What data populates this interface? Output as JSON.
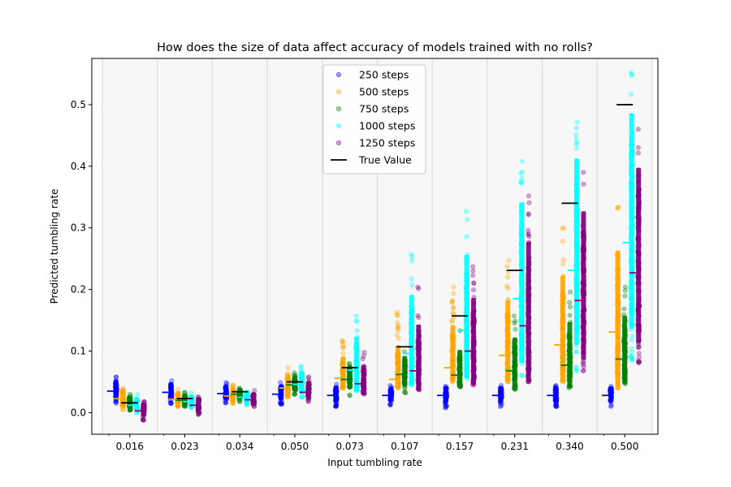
{
  "chart_data": {
    "type": "scatter",
    "title": "How does the size of data affect accuracy of models trained with no rolls?",
    "xlabel": "Input tumbling rate",
    "ylabel": "Predicted tumbling rate",
    "categories": [
      "0.016",
      "0.023",
      "0.034",
      "0.050",
      "0.073",
      "0.107",
      "0.157",
      "0.231",
      "0.340",
      "0.500"
    ],
    "ylim": [
      -0.035,
      0.575
    ],
    "yticks": [
      "0.0",
      "0.1",
      "0.2",
      "0.3",
      "0.4",
      "0.5"
    ],
    "legend_position": "top-center",
    "true_value_label": "True Value",
    "true_values": [
      0.016,
      0.023,
      0.034,
      0.05,
      0.073,
      0.107,
      0.157,
      0.231,
      0.34,
      0.5
    ],
    "series": [
      {
        "name": "250 steps",
        "color": "#0000ff",
        "ranges": [
          [
            0.015,
            0.058
          ],
          [
            0.015,
            0.052
          ],
          [
            0.016,
            0.049
          ],
          [
            0.014,
            0.049
          ],
          [
            0.01,
            0.046
          ],
          [
            0.012,
            0.044
          ],
          [
            0.008,
            0.043
          ],
          [
            0.01,
            0.044
          ],
          [
            0.01,
            0.044
          ],
          [
            0.01,
            0.043
          ]
        ],
        "means": [
          0.035,
          0.033,
          0.031,
          0.03,
          0.028,
          0.028,
          0.028,
          0.028,
          0.028,
          0.028
        ]
      },
      {
        "name": "500 steps",
        "color": "#ffa500",
        "ranges": [
          [
            0.005,
            0.04
          ],
          [
            0.01,
            0.038
          ],
          [
            0.015,
            0.045
          ],
          [
            0.025,
            0.073
          ],
          [
            0.04,
            0.117
          ],
          [
            0.04,
            0.163
          ],
          [
            0.05,
            0.204
          ],
          [
            0.05,
            0.247
          ],
          [
            0.05,
            0.3
          ],
          [
            0.04,
            0.334
          ]
        ],
        "means": [
          0.023,
          0.022,
          0.027,
          0.04,
          0.056,
          0.054,
          0.073,
          0.093,
          0.11,
          0.131
        ]
      },
      {
        "name": "750 steps",
        "color": "#008000",
        "ranges": [
          [
            0.004,
            0.03
          ],
          [
            0.01,
            0.033
          ],
          [
            0.018,
            0.04
          ],
          [
            0.03,
            0.065
          ],
          [
            0.028,
            0.08
          ],
          [
            0.032,
            0.099
          ],
          [
            0.042,
            0.133
          ],
          [
            0.038,
            0.157
          ],
          [
            0.04,
            0.196
          ],
          [
            0.047,
            0.204
          ]
        ],
        "means": [
          0.016,
          0.02,
          0.03,
          0.045,
          0.054,
          0.062,
          0.061,
          0.068,
          0.077,
          0.087
        ]
      },
      {
        "name": "1000 steps",
        "color": "#00ffff",
        "ranges": [
          [
            0.0,
            0.03
          ],
          [
            0.008,
            0.032
          ],
          [
            0.012,
            0.034
          ],
          [
            0.025,
            0.075
          ],
          [
            0.036,
            0.157
          ],
          [
            0.045,
            0.257
          ],
          [
            0.055,
            0.327
          ],
          [
            0.06,
            0.408
          ],
          [
            0.068,
            0.472
          ],
          [
            0.085,
            0.552
          ]
        ],
        "means": [
          0.012,
          0.018,
          0.025,
          0.046,
          0.069,
          0.096,
          0.134,
          0.185,
          0.231,
          0.276
        ]
      },
      {
        "name": "1250 steps",
        "color": "#800080",
        "ranges": [
          [
            -0.012,
            0.018
          ],
          [
            -0.003,
            0.026
          ],
          [
            0.01,
            0.036
          ],
          [
            0.018,
            0.058
          ],
          [
            0.03,
            0.098
          ],
          [
            0.037,
            0.204
          ],
          [
            0.045,
            0.237
          ],
          [
            0.05,
            0.352
          ],
          [
            0.068,
            0.39
          ],
          [
            0.081,
            0.46
          ]
        ],
        "means": [
          0.003,
          0.012,
          0.021,
          0.033,
          0.047,
          0.068,
          0.1,
          0.141,
          0.182,
          0.227
        ]
      }
    ]
  }
}
